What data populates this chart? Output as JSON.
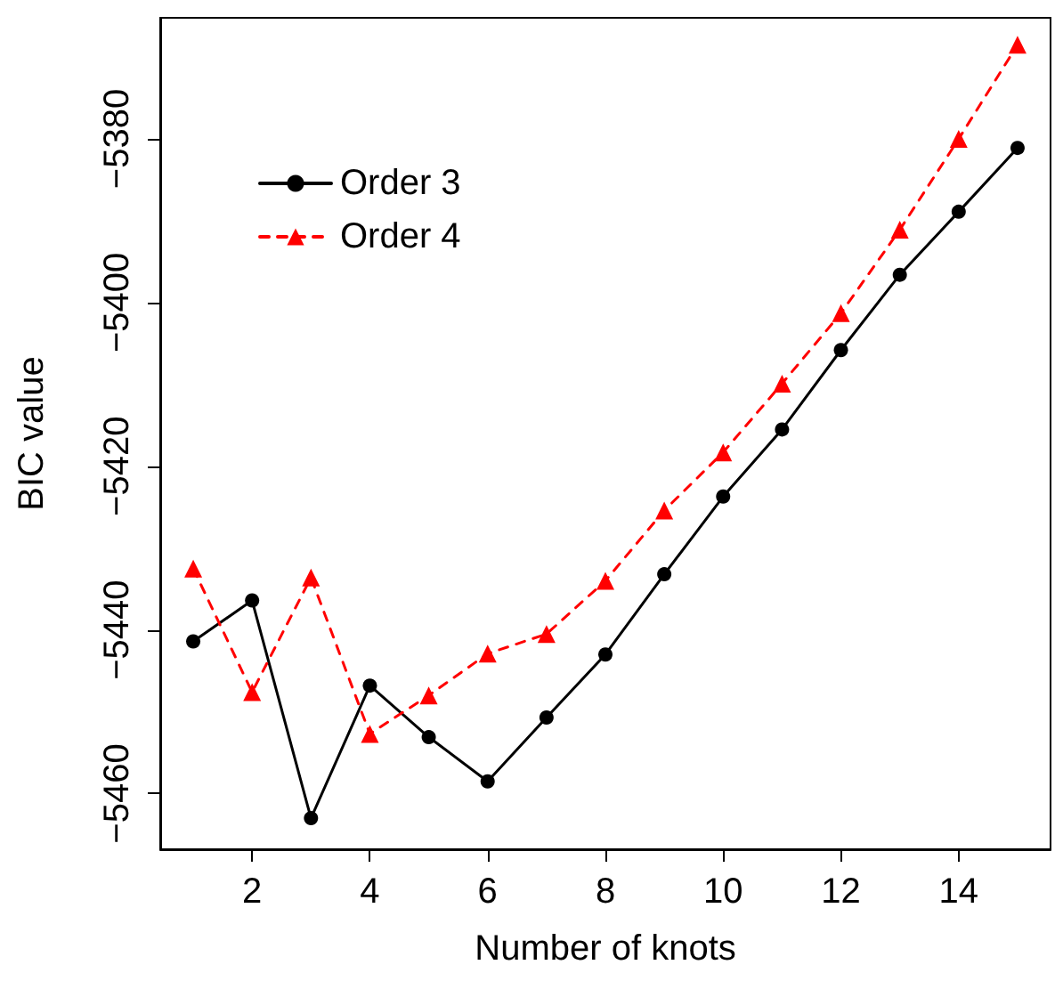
{
  "chart_data": {
    "type": "line",
    "xlabel": "Number of knots",
    "ylabel": "BIC value",
    "x": [
      1,
      2,
      3,
      4,
      5,
      6,
      7,
      8,
      9,
      10,
      11,
      12,
      13,
      14,
      15
    ],
    "series": [
      {
        "name": "Order 3",
        "color": "#000000",
        "marker": "circle",
        "line_style": "solid",
        "values": [
          -5441.4,
          -5436.4,
          -5463.0,
          -5446.8,
          -5453.1,
          -5458.5,
          -5450.7,
          -5443.0,
          -5433.2,
          -5423.7,
          -5415.5,
          -5405.8,
          -5396.6,
          -5388.9,
          -5381.1
        ]
      },
      {
        "name": "Order 4",
        "color": "#ff0000",
        "marker": "triangle",
        "line_style": "dashed",
        "values": [
          -5432.5,
          -5447.6,
          -5433.6,
          -5452.7,
          -5448.0,
          -5442.9,
          -5440.5,
          -5434.0,
          -5425.4,
          -5418.3,
          -5409.9,
          -5401.3,
          -5391.1,
          -5380.0,
          -5368.5
        ]
      }
    ],
    "xlim": [
      0.44,
      15.56
    ],
    "ylim": [
      -5466.8,
      -5365.2
    ],
    "xticks": [
      2,
      4,
      6,
      8,
      10,
      12,
      14
    ],
    "yticks": [
      -5460,
      -5440,
      -5420,
      -5400,
      -5380
    ],
    "grid": false,
    "legend": "top left"
  }
}
